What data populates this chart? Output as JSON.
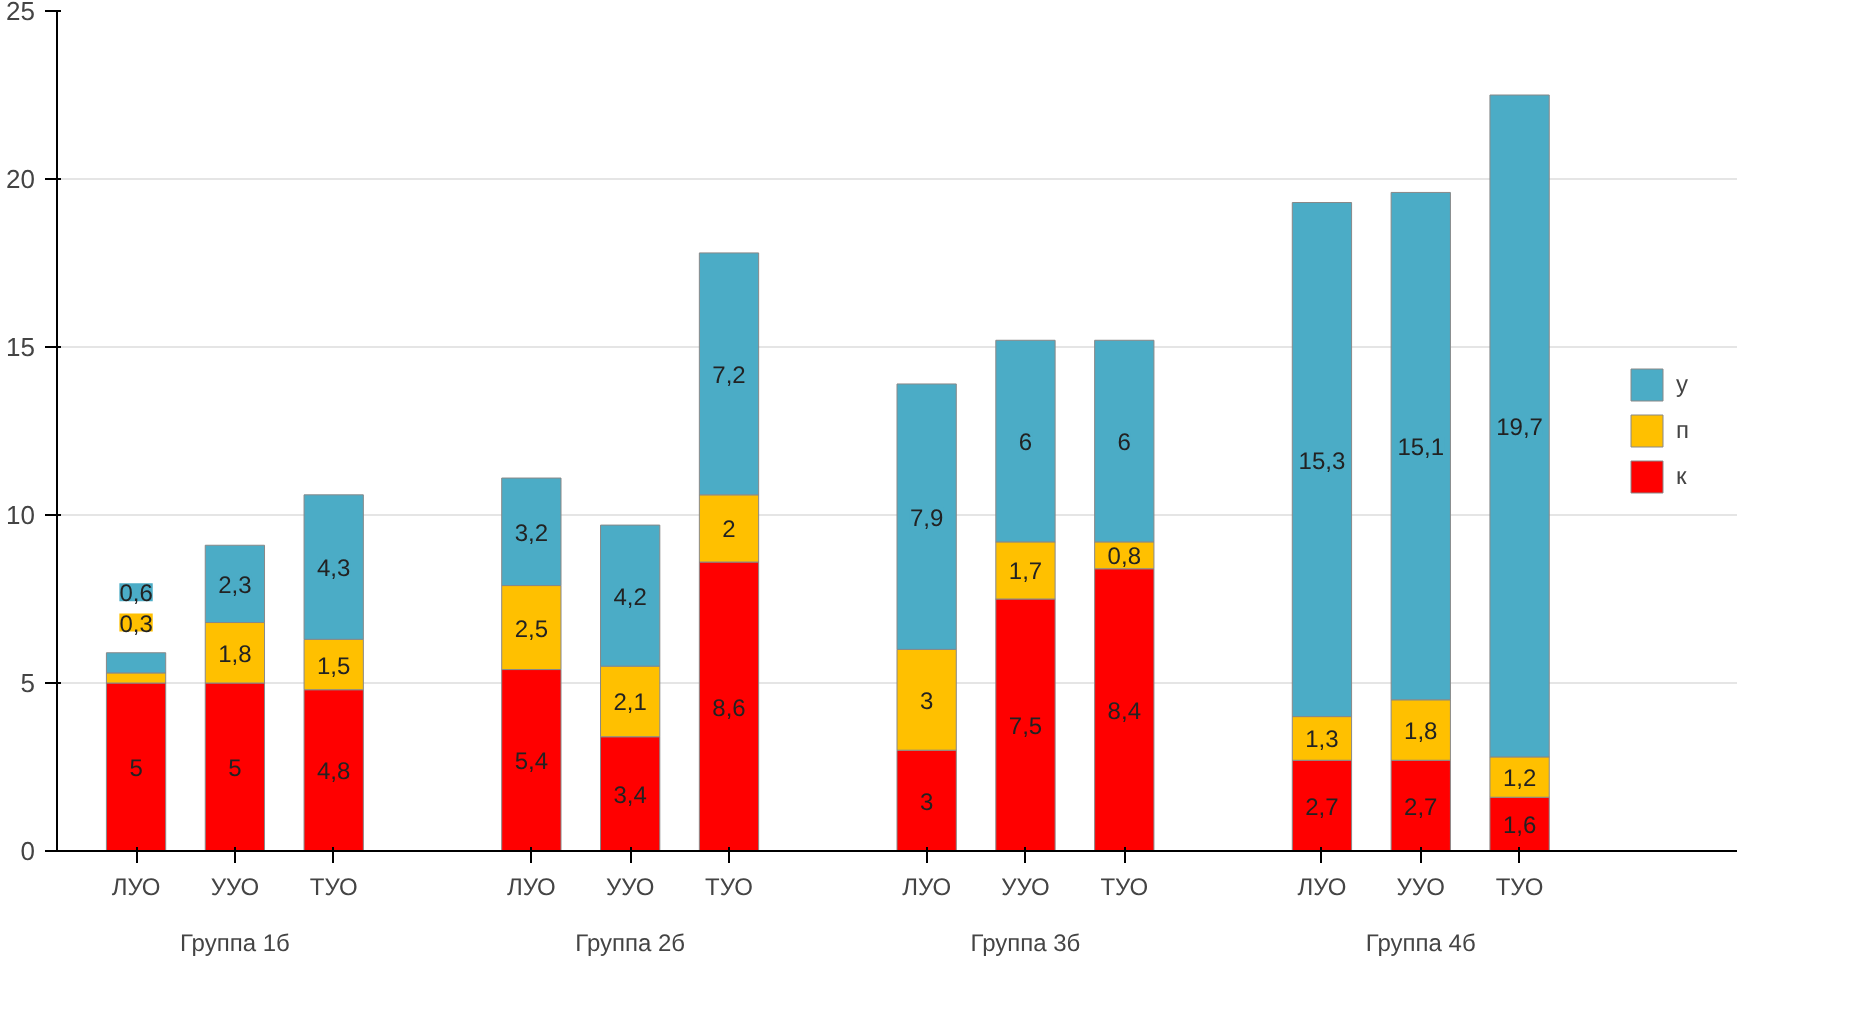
{
  "chart_data": {
    "type": "bar",
    "stacked": true,
    "categories": [
      "ЛУО",
      "УУО",
      "ТУО",
      "ЛУО",
      "УУО",
      "ТУО",
      "ЛУО",
      "УУО",
      "ТУО",
      "ЛУО",
      "УУО",
      "ТУО"
    ],
    "annotations": [
      "Группа 1б",
      "Группа 2б",
      "Группа 3б",
      "Группа 4б"
    ],
    "series": [
      {
        "name": "к",
        "color": "#ff0000",
        "values": [
          5,
          5,
          4.8,
          5.4,
          3.4,
          8.6,
          3,
          7.5,
          8.4,
          2.7,
          2.7,
          1.6
        ],
        "value_labels": [
          "5",
          "5",
          "4,8",
          "5,4",
          "3,4",
          "8,6",
          "3",
          "7,5",
          "8,4",
          "2,7",
          "2,7",
          "1,6"
        ]
      },
      {
        "name": "п",
        "color": "#ffc000",
        "values": [
          0.3,
          1.8,
          1.5,
          2.5,
          2.1,
          2,
          3,
          1.7,
          0.8,
          1.3,
          1.8,
          1.2
        ],
        "value_labels": [
          "0,3",
          "1,8",
          "1,5",
          "2,5",
          "2,1",
          "2",
          "3",
          "1,7",
          "0,8",
          "1,3",
          "1,8",
          "1,2"
        ]
      },
      {
        "name": "у",
        "color": "#4bacc6",
        "values": [
          0.6,
          2.3,
          4.3,
          3.2,
          4.2,
          7.2,
          7.9,
          6,
          6,
          15.3,
          15.1,
          19.7
        ],
        "value_labels": [
          "0,6",
          "2,3",
          "4,3",
          "3,2",
          "4,2",
          "7,2",
          "7,9",
          "6",
          "6",
          "15,3",
          "15,1",
          "19,7"
        ]
      }
    ],
    "ylim": [
      0,
      25
    ],
    "yticks": [
      0,
      5,
      10,
      15,
      20,
      25
    ],
    "grid": "y",
    "legend": "right"
  }
}
